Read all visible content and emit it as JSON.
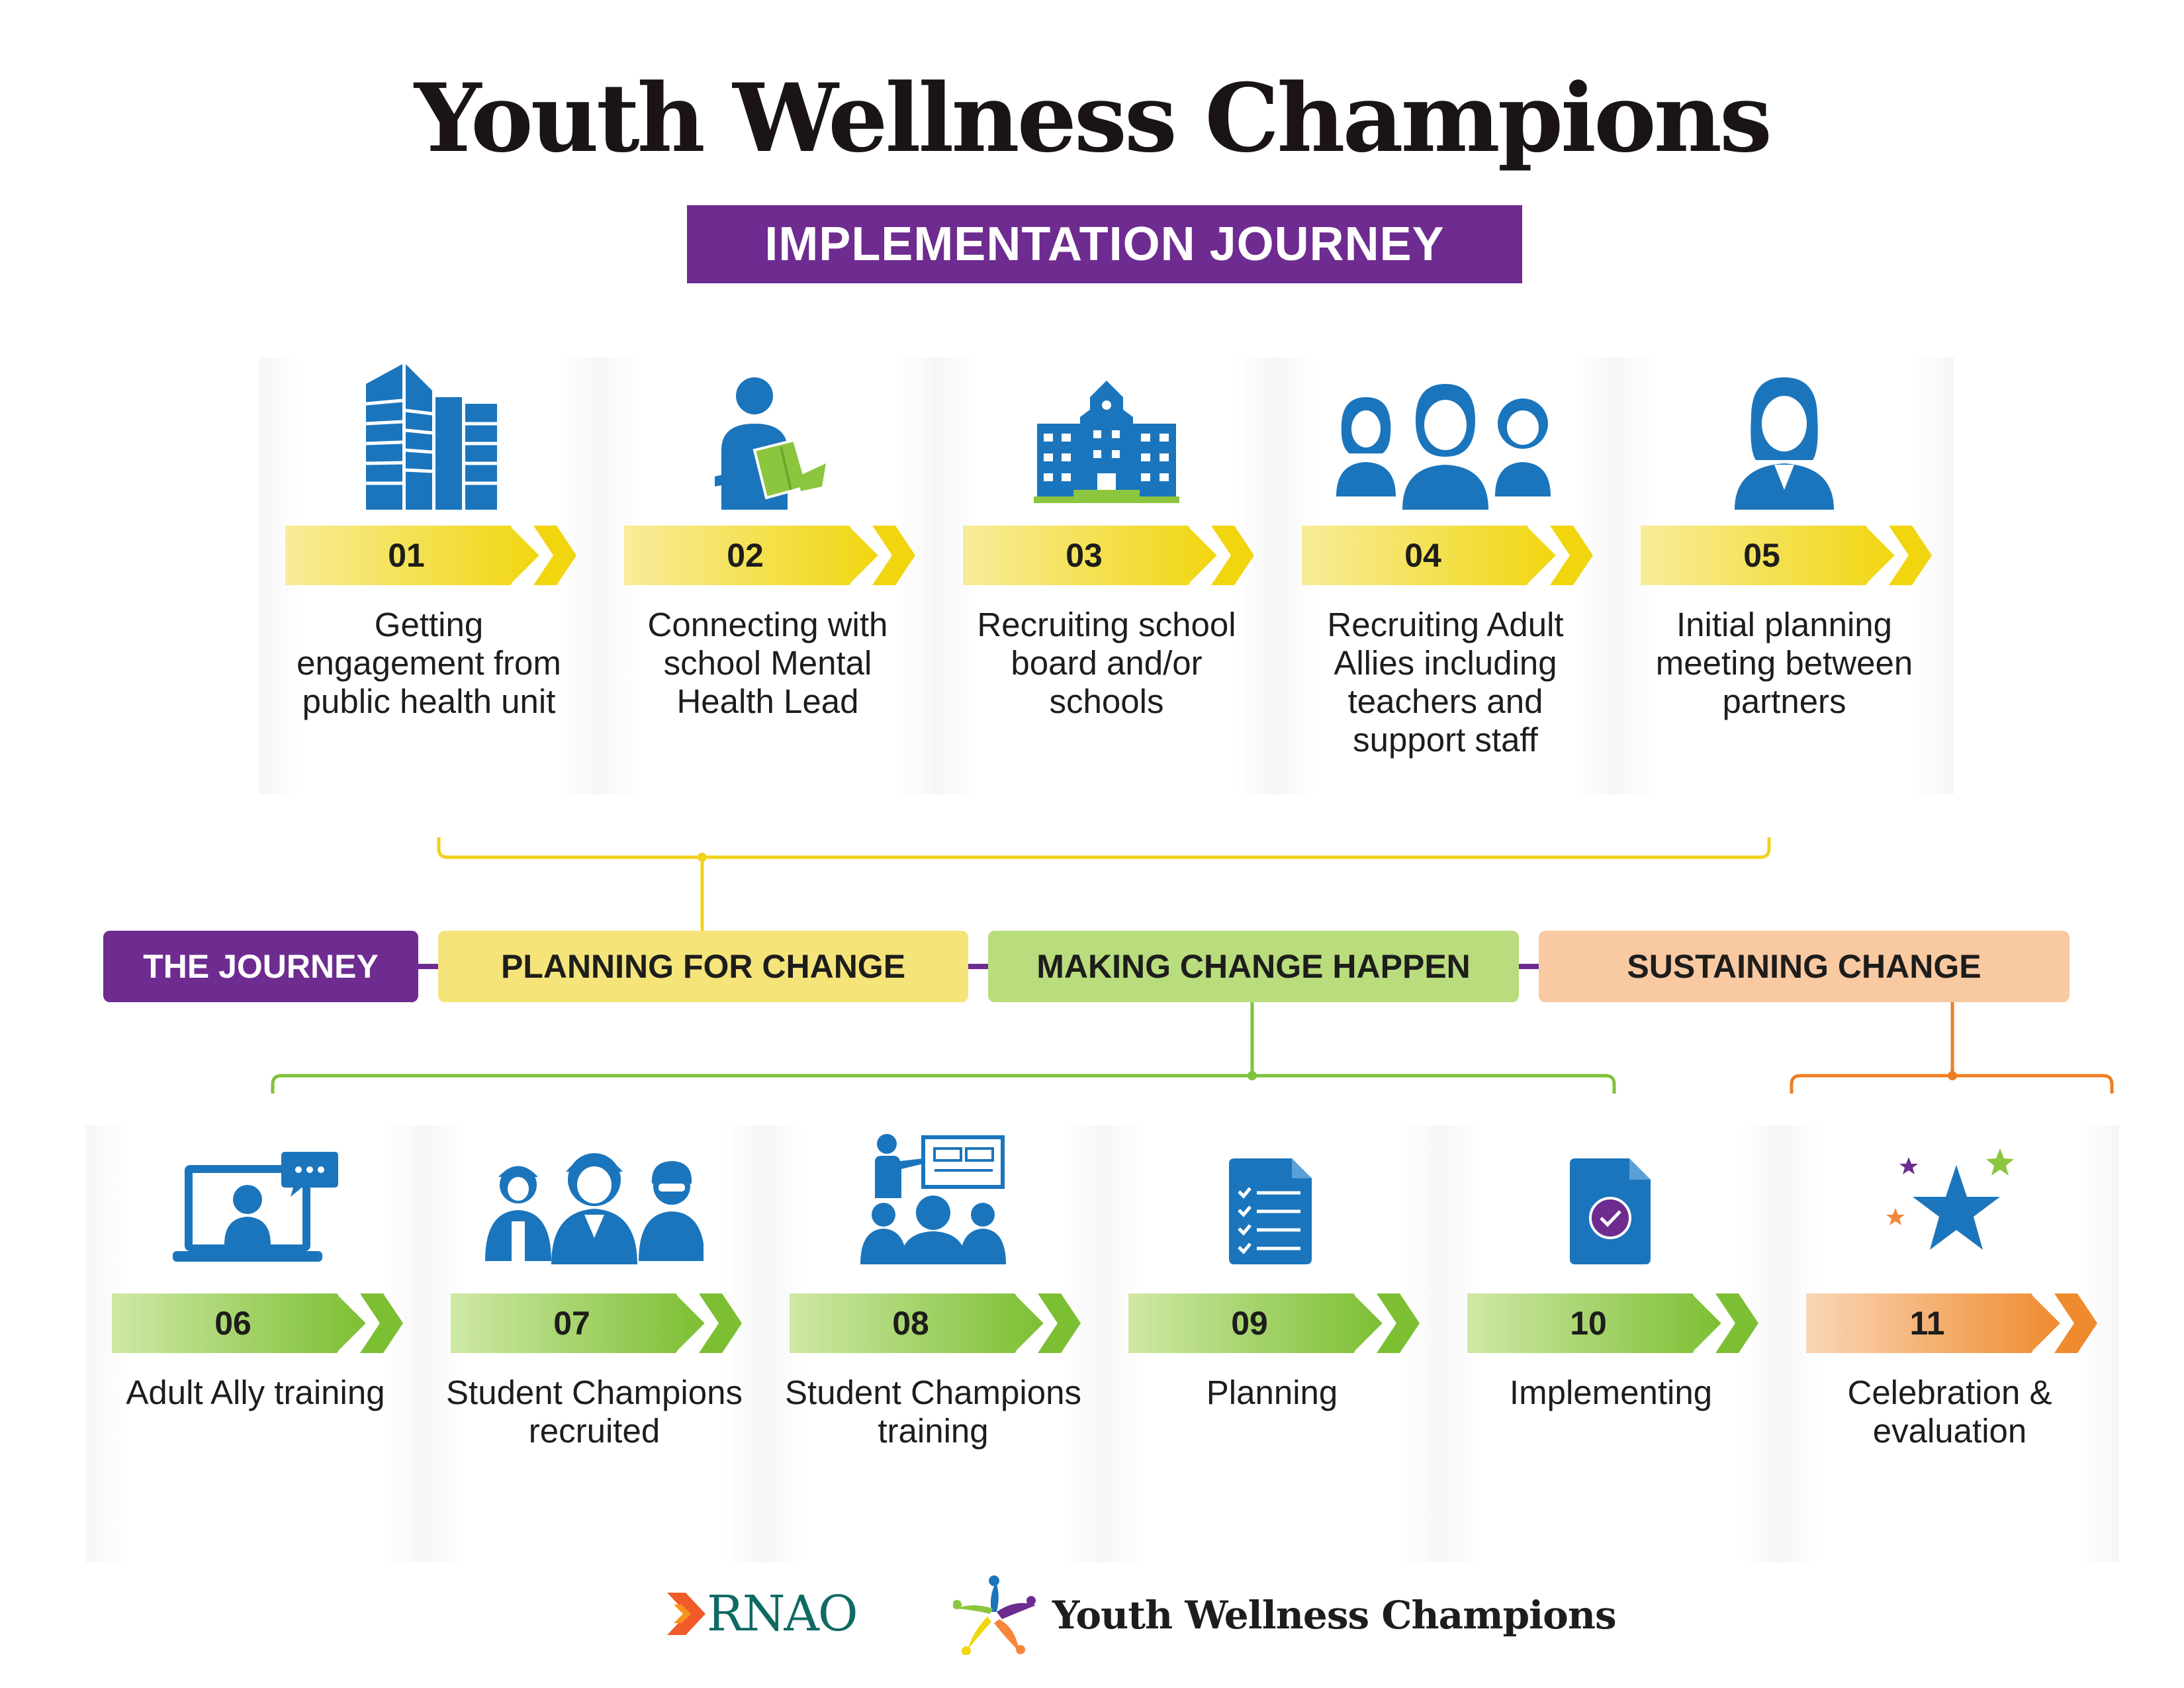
{
  "title": "Youth Wellness Champions",
  "subtitle": "IMPLEMENTATION JOURNEY",
  "colors": {
    "purple": "#6e2b90",
    "blue": "#1b75bc",
    "yellow": "#f5e35f",
    "green": "#a6d05c",
    "orange": "#f5863b",
    "peach": "#f8c9a3"
  },
  "steps": [
    {
      "num": "01",
      "label": "Getting engagement from public health unit",
      "icon": "office-buildings-icon"
    },
    {
      "num": "02",
      "label": "Connecting with school Mental Health Lead",
      "icon": "person-reading-icon"
    },
    {
      "num": "03",
      "label": "Recruiting school board and/or schools",
      "icon": "school-building-icon"
    },
    {
      "num": "04",
      "label": "Recruiting Adult Allies including teachers and support staff",
      "icon": "group-of-adults-icon"
    },
    {
      "num": "05",
      "label": "Initial planning meeting between partners",
      "icon": "woman-professional-icon"
    },
    {
      "num": "06",
      "label": "Adult Ally training",
      "icon": "laptop-video-call-icon"
    },
    {
      "num": "07",
      "label": "Student Champions recruited",
      "icon": "students-group-icon"
    },
    {
      "num": "08",
      "label": "Student Champions training",
      "icon": "presentation-audience-icon"
    },
    {
      "num": "09",
      "label": "Planning",
      "icon": "checklist-document-icon"
    },
    {
      "num": "10",
      "label": "Implementing",
      "icon": "approved-document-icon"
    },
    {
      "num": "11",
      "label": "Celebration & evaluation",
      "icon": "celebration-stars-icon"
    }
  ],
  "phases": {
    "journey": "THE JOURNEY",
    "planning": "PLANNING FOR CHANGE",
    "making": "MAKING CHANGE HAPPEN",
    "sustaining": "SUSTAINING CHANGE"
  },
  "logos": {
    "rnao": "RNAO",
    "ywc": "Youth Wellness Champions"
  }
}
